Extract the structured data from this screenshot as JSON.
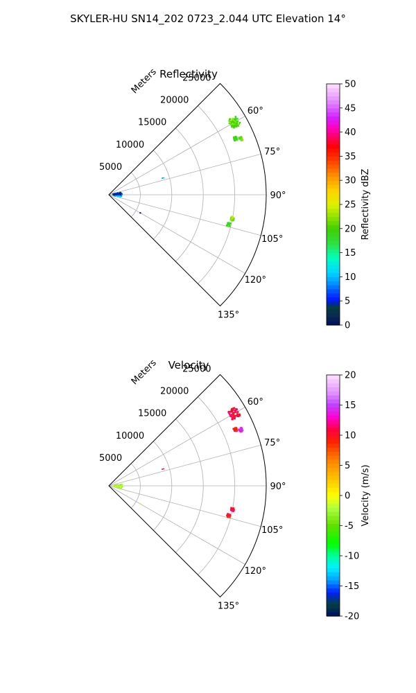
{
  "figure": {
    "suptitle": "SKYLER-HU  SN14_202  0723_2.044 UTC Elevation 14°"
  },
  "chart_data": [
    {
      "type": "polar-sector",
      "title": "Reflectivity",
      "radial_label": "Meters",
      "radial_range": [
        0,
        25000
      ],
      "radial_ticks": [
        "5000",
        "10000",
        "15000",
        "20000",
        "25000"
      ],
      "angular_range_deg": [
        45,
        135
      ],
      "angular_ticks": [
        "60°",
        "75°",
        "90°",
        "105°",
        "120°",
        "135°"
      ],
      "grid": true,
      "colorbar": {
        "label": "Reflectivity dBZ",
        "range": [
          0,
          50
        ],
        "ticks": [
          "0",
          "5",
          "10",
          "15",
          "20",
          "25",
          "30",
          "35",
          "40",
          "45",
          "50"
        ]
      },
      "echo_clusters": [
        {
          "azimuth_deg": 60,
          "range_m": 23000,
          "value": 20
        },
        {
          "azimuth_deg": 66,
          "range_m": 22000,
          "value": 19
        },
        {
          "azimuth_deg": 67,
          "range_m": 22800,
          "value": 21
        },
        {
          "azimuth_deg": 101,
          "range_m": 20000,
          "value": 22
        },
        {
          "azimuth_deg": 104,
          "range_m": 19600,
          "value": 19
        },
        {
          "azimuth_deg": 90,
          "range_m": 1500,
          "value": 7
        },
        {
          "azimuth_deg": 95,
          "range_m": 1400,
          "value": 9
        },
        {
          "azimuth_deg": 84,
          "range_m": 1300,
          "value": 4
        },
        {
          "azimuth_deg": 73,
          "range_m": 9000,
          "value": 11
        },
        {
          "azimuth_deg": 120,
          "range_m": 5700,
          "value": 1
        }
      ]
    },
    {
      "type": "polar-sector",
      "title": "Velocity",
      "radial_label": "Meters",
      "radial_range": [
        0,
        25000
      ],
      "radial_ticks": [
        "5000",
        "10000",
        "15000",
        "20000",
        "25000"
      ],
      "angular_range_deg": [
        45,
        135
      ],
      "angular_ticks": [
        "60°",
        "75°",
        "90°",
        "105°",
        "120°",
        "135°"
      ],
      "grid": true,
      "colorbar": {
        "label": "Velocity (m/s)",
        "range": [
          -20,
          20
        ],
        "ticks": [
          "-20",
          "-15",
          "-10",
          "-5",
          "0",
          "5",
          "10",
          "15",
          "20"
        ]
      },
      "echo_clusters": [
        {
          "azimuth_deg": 60,
          "range_m": 23000,
          "value": 11
        },
        {
          "azimuth_deg": 66,
          "range_m": 22000,
          "value": 9
        },
        {
          "azimuth_deg": 67,
          "range_m": 22800,
          "value": 14
        },
        {
          "azimuth_deg": 101,
          "range_m": 20000,
          "value": 11
        },
        {
          "azimuth_deg": 104,
          "range_m": 19600,
          "value": 10
        },
        {
          "azimuth_deg": 90,
          "range_m": 1500,
          "value": -3
        },
        {
          "azimuth_deg": 95,
          "range_m": 1400,
          "value": -2
        },
        {
          "azimuth_deg": 73,
          "range_m": 9000,
          "value": 10
        },
        {
          "azimuth_deg": 120,
          "range_m": 5700,
          "value": -1
        }
      ]
    }
  ],
  "colors": {
    "axis": "#000000",
    "grid": "#b0b0b0"
  }
}
